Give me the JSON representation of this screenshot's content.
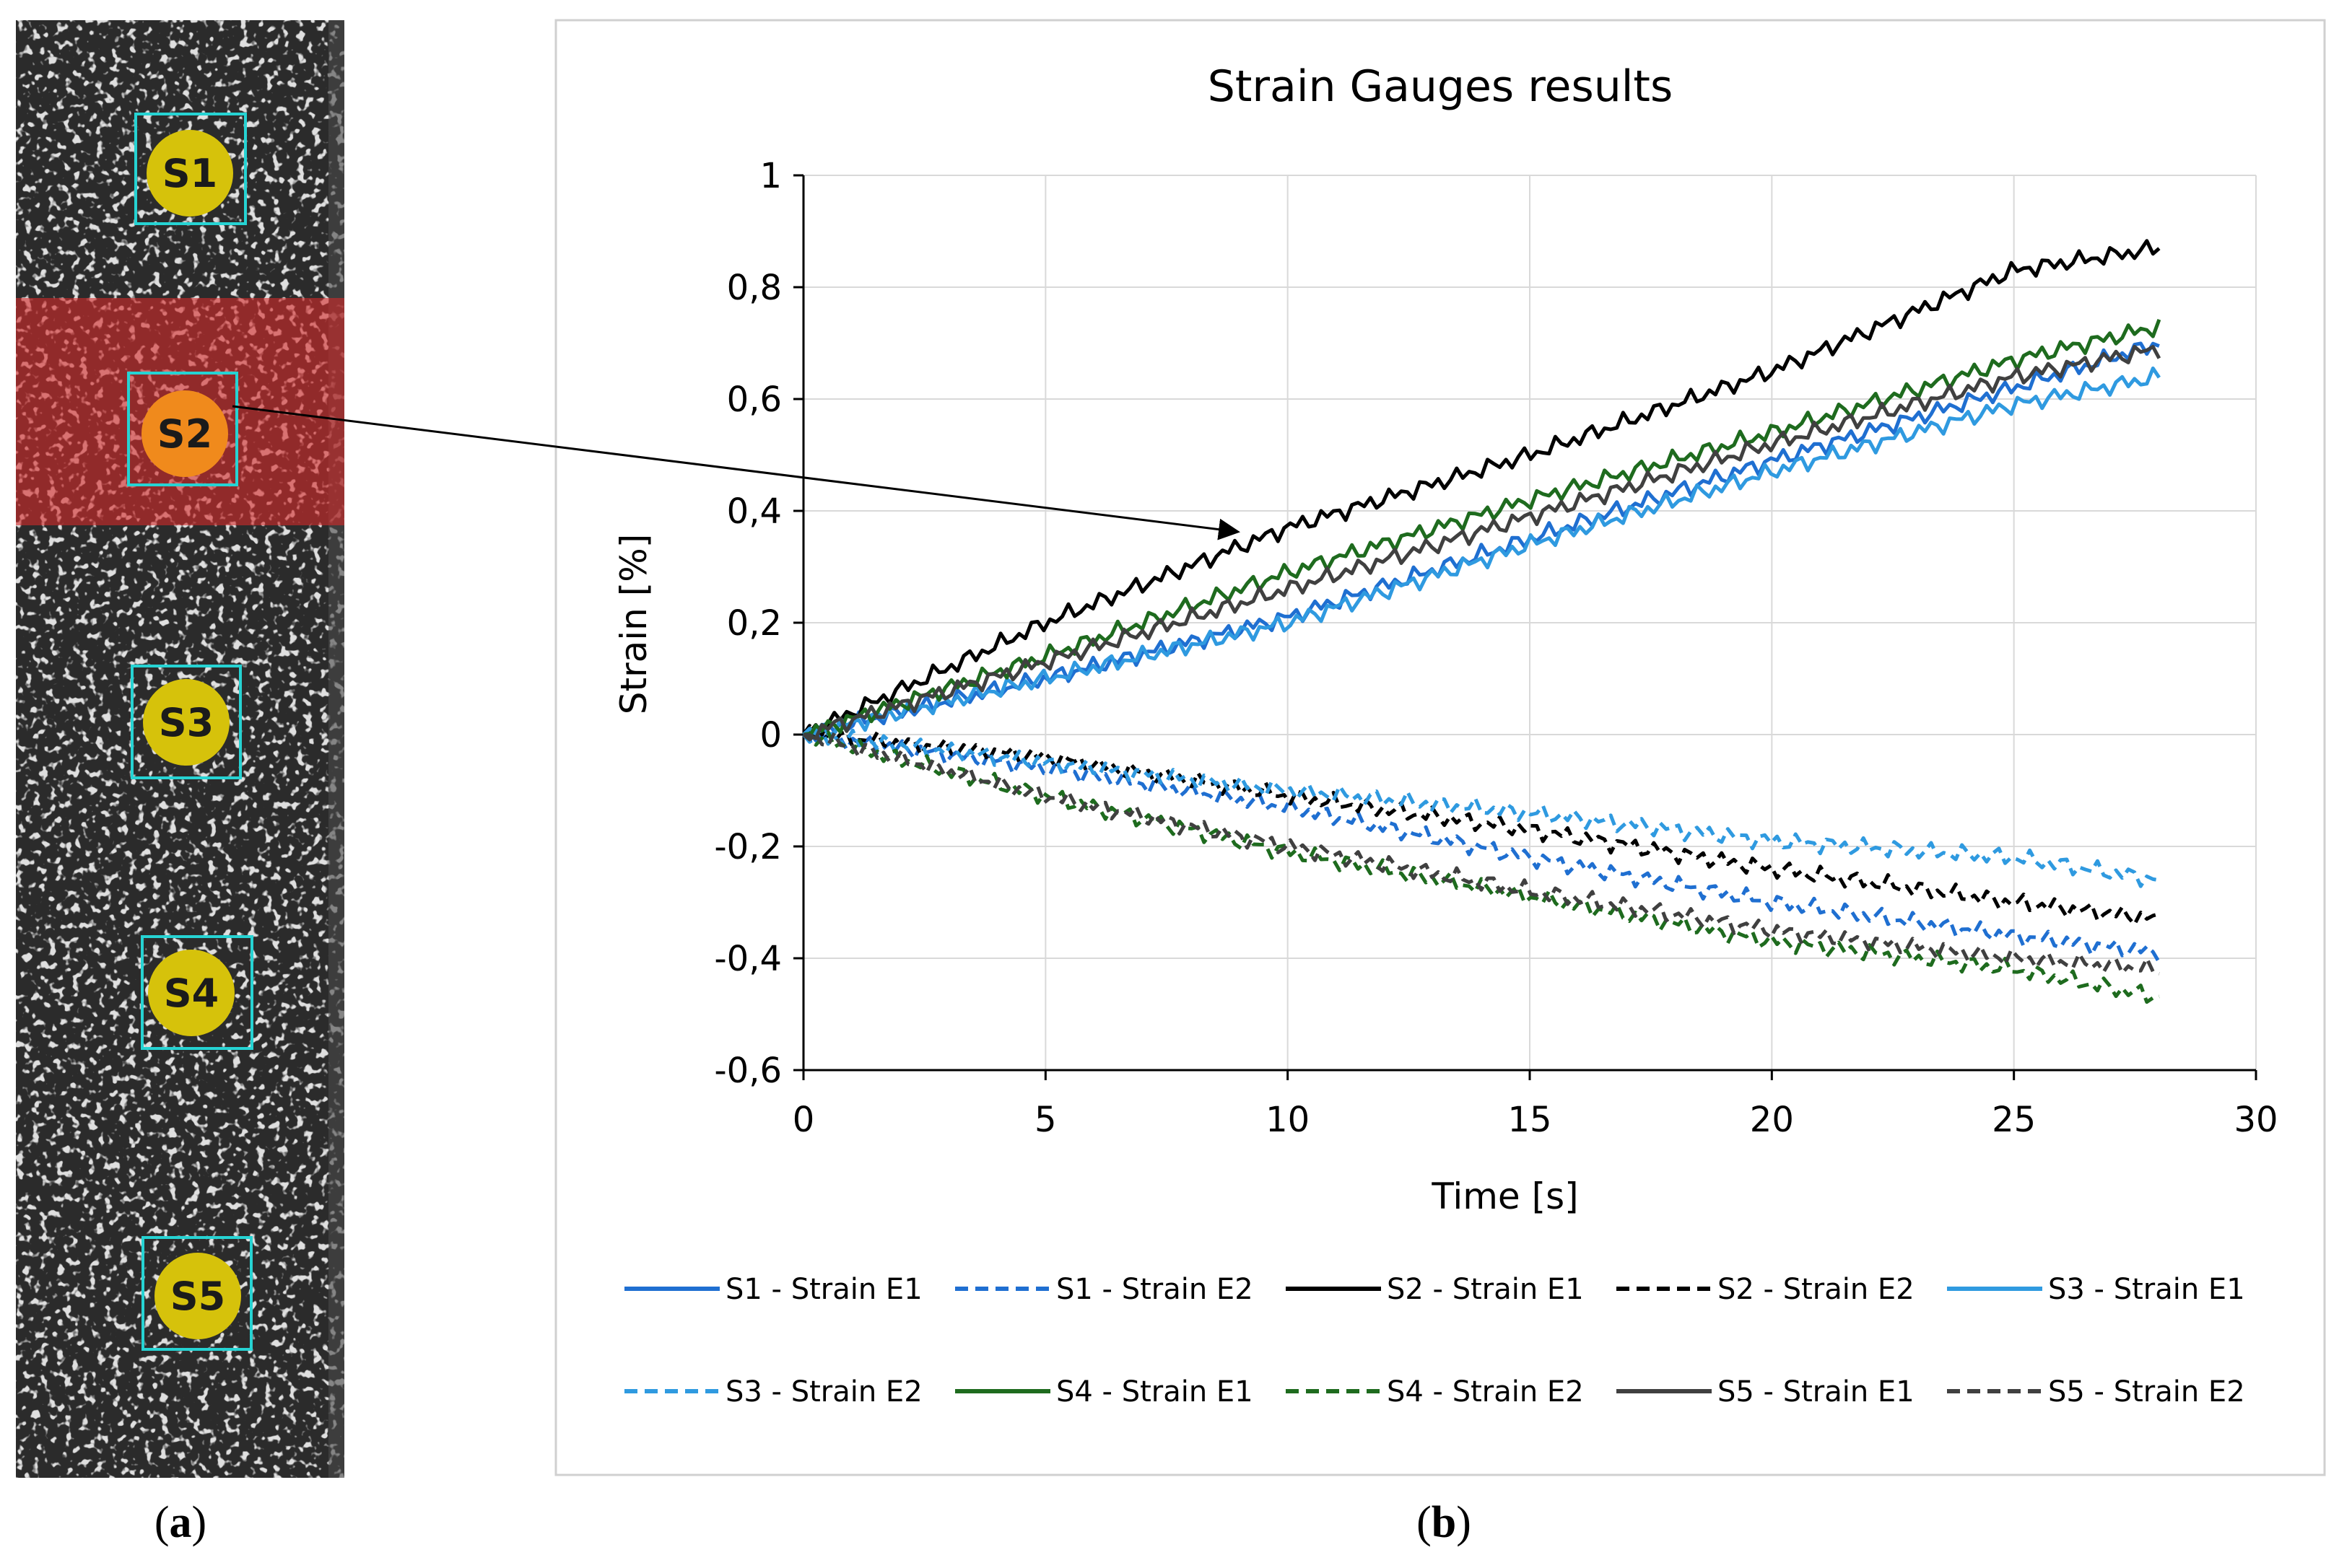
{
  "panel_a": {
    "label_open": "(",
    "label_letter": "a",
    "label_close": ")",
    "markers": [
      {
        "name": "S1",
        "color": "#d6c20b",
        "highlighted": false
      },
      {
        "name": "S2",
        "color": "#f08a1c",
        "highlighted": true
      },
      {
        "name": "S3",
        "color": "#d6c20b",
        "highlighted": false
      },
      {
        "name": "S4",
        "color": "#d6c20b",
        "highlighted": false
      },
      {
        "name": "S5",
        "color": "#d6c20b",
        "highlighted": false
      }
    ],
    "box_color": "#26d3d3",
    "highlight_color": "#d62a2a"
  },
  "panel_b": {
    "label_open": "(",
    "label_letter": "b",
    "label_close": ")"
  },
  "chart_data": {
    "type": "line",
    "title": "Strain Gauges results",
    "xlabel": "Time [s]",
    "ylabel": "Strain [%]",
    "xlim": [
      0,
      30
    ],
    "ylim": [
      -0.6,
      1
    ],
    "xticks": [
      0,
      5,
      10,
      15,
      20,
      25,
      30
    ],
    "xtick_labels": [
      "0",
      "5",
      "10",
      "15",
      "20",
      "25",
      "30"
    ],
    "yticks": [
      -0.6,
      -0.4,
      -0.2,
      0,
      0.2,
      0.4,
      0.6,
      0.8,
      1
    ],
    "ytick_labels": [
      "-0,6",
      "-0,4",
      "-0,2",
      "0",
      "0,2",
      "0,4",
      "0,6",
      "0,8",
      "1"
    ],
    "grid": true,
    "legend_position": "bottom",
    "annotation": "arrow from marker S2 to series S2 - Strain E1 near t = 9 s",
    "series": [
      {
        "name": "S1 - Strain E1",
        "color": "#1f6fd1",
        "dash": "solid",
        "x": [
          0,
          5,
          10,
          15,
          20,
          25,
          28
        ],
        "y": [
          0,
          0.1,
          0.21,
          0.35,
          0.49,
          0.62,
          0.7
        ]
      },
      {
        "name": "S1 - Strain E2",
        "color": "#1f6fd1",
        "dash": "dashed",
        "x": [
          0,
          5,
          10,
          15,
          20,
          25,
          28
        ],
        "y": [
          0,
          -0.06,
          -0.13,
          -0.22,
          -0.3,
          -0.36,
          -0.39
        ]
      },
      {
        "name": "S2 - Strain E1",
        "color": "#000000",
        "dash": "solid",
        "x": [
          0,
          5,
          10,
          15,
          20,
          25,
          28
        ],
        "y": [
          0,
          0.2,
          0.37,
          0.5,
          0.65,
          0.83,
          0.87
        ]
      },
      {
        "name": "S2 - Strain E2",
        "color": "#000000",
        "dash": "dashed",
        "x": [
          0,
          5,
          10,
          15,
          20,
          25,
          28
        ],
        "y": [
          0,
          -0.04,
          -0.11,
          -0.17,
          -0.24,
          -0.3,
          -0.33
        ]
      },
      {
        "name": "S3 - Strain E1",
        "color": "#2f9ae0",
        "dash": "solid",
        "x": [
          0,
          5,
          10,
          15,
          20,
          25,
          28
        ],
        "y": [
          0,
          0.1,
          0.2,
          0.34,
          0.47,
          0.59,
          0.64
        ]
      },
      {
        "name": "S3 - Strain E2",
        "color": "#2f9ae0",
        "dash": "dashed",
        "x": [
          0,
          5,
          10,
          15,
          20,
          25,
          28
        ],
        "y": [
          0,
          -0.05,
          -0.1,
          -0.14,
          -0.19,
          -0.22,
          -0.26
        ]
      },
      {
        "name": "S4 - Strain E1",
        "color": "#1e6b1e",
        "dash": "solid",
        "x": [
          0,
          5,
          10,
          15,
          20,
          25,
          28
        ],
        "y": [
          0,
          0.14,
          0.29,
          0.42,
          0.54,
          0.67,
          0.73
        ]
      },
      {
        "name": "S4 - Strain E2",
        "color": "#1e6b1e",
        "dash": "dashed",
        "x": [
          0,
          5,
          10,
          15,
          20,
          25,
          28
        ],
        "y": [
          0,
          -0.11,
          -0.21,
          -0.29,
          -0.37,
          -0.42,
          -0.47
        ]
      },
      {
        "name": "S5 - Strain E1",
        "color": "#404040",
        "dash": "solid",
        "x": [
          0,
          5,
          10,
          15,
          20,
          25,
          28
        ],
        "y": [
          0,
          0.13,
          0.26,
          0.39,
          0.52,
          0.64,
          0.69
        ]
      },
      {
        "name": "S5 - Strain E2",
        "color": "#404040",
        "dash": "dashed",
        "x": [
          0,
          5,
          10,
          15,
          20,
          25,
          28
        ],
        "y": [
          0,
          -0.11,
          -0.2,
          -0.28,
          -0.35,
          -0.4,
          -0.42
        ]
      }
    ]
  }
}
